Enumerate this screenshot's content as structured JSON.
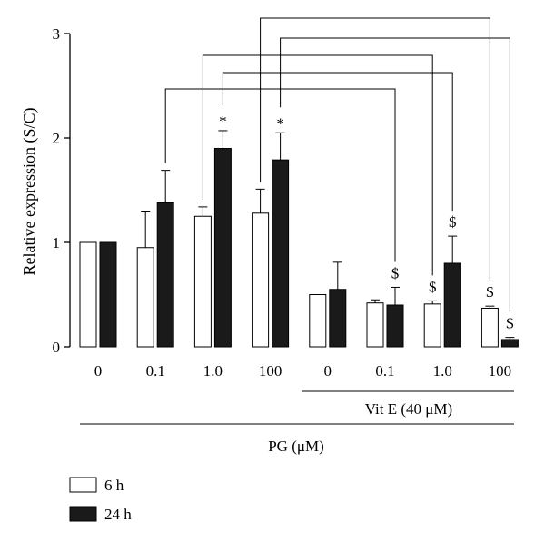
{
  "chart_data": {
    "type": "bar",
    "ylabel": "Relative expression (S/C)",
    "ylim": [
      0,
      3
    ],
    "yticks": [
      "0",
      "1",
      "2",
      "3"
    ],
    "categories": [
      "0",
      "0.1",
      "1.0",
      "100",
      "0",
      "0.1",
      "1.0",
      "100"
    ],
    "group_labels": {
      "vit_e": "Vit E (40 μM)",
      "pg": "PG (μM)"
    },
    "series": [
      {
        "name": "6 h",
        "color": "#ffffff",
        "values": [
          1.0,
          0.95,
          1.25,
          1.28,
          0.5,
          0.42,
          0.41,
          0.37
        ],
        "errors": [
          0.0,
          0.35,
          0.09,
          0.23,
          0.0,
          0.03,
          0.03,
          0.02
        ],
        "markers": [
          "",
          "",
          "",
          "",
          "",
          "",
          "$",
          "$"
        ]
      },
      {
        "name": "24 h",
        "color": "#1a1a1a",
        "values": [
          1.0,
          1.38,
          1.9,
          1.79,
          0.55,
          0.4,
          0.8,
          0.07
        ],
        "errors": [
          0.0,
          0.31,
          0.17,
          0.26,
          0.26,
          0.17,
          0.26,
          0.02
        ],
        "markers": [
          "",
          "",
          "*",
          "*",
          "",
          "$",
          "$",
          "$"
        ]
      }
    ],
    "brackets": [
      {
        "from": 1,
        "to": 5,
        "series": 1
      },
      {
        "from": 2,
        "to": 6,
        "series": 1
      },
      {
        "from": 2,
        "to": 6,
        "series": 0
      },
      {
        "from": 3,
        "to": 7,
        "series": 1
      },
      {
        "from": 3,
        "to": 7,
        "series": 0
      }
    ],
    "legend": [
      {
        "label": "6 h",
        "color": "#ffffff"
      },
      {
        "label": "24 h",
        "color": "#1a1a1a"
      }
    ],
    "legend_position": "bottom-left"
  }
}
